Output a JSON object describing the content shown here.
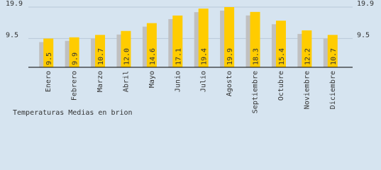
{
  "chart_data": {
    "type": "bar",
    "title": "Temperaturas Medias en brion",
    "categories": [
      "Enero",
      "Febrero",
      "Marzo",
      "Abril",
      "Mayo",
      "Junio",
      "Julio",
      "Agosto",
      "Septiembre",
      "Octubre",
      "Noviembre",
      "Diciembre"
    ],
    "values": [
      9.5,
      9.9,
      10.7,
      12.0,
      14.6,
      17.1,
      19.4,
      19.9,
      18.3,
      15.4,
      12.2,
      10.7
    ],
    "value_labels": [
      "9.5",
      "9.9",
      "10.7",
      "12.0",
      "14.6",
      "17.1",
      "19.4",
      "19.9",
      "18.3",
      "15.4",
      "12.2",
      "10.7"
    ],
    "color": "#ffcc00",
    "shadow_color": "#c0c0c0",
    "ylim": [
      0,
      19.9
    ],
    "yticks": [
      9.5,
      19.9
    ],
    "grid": true
  }
}
